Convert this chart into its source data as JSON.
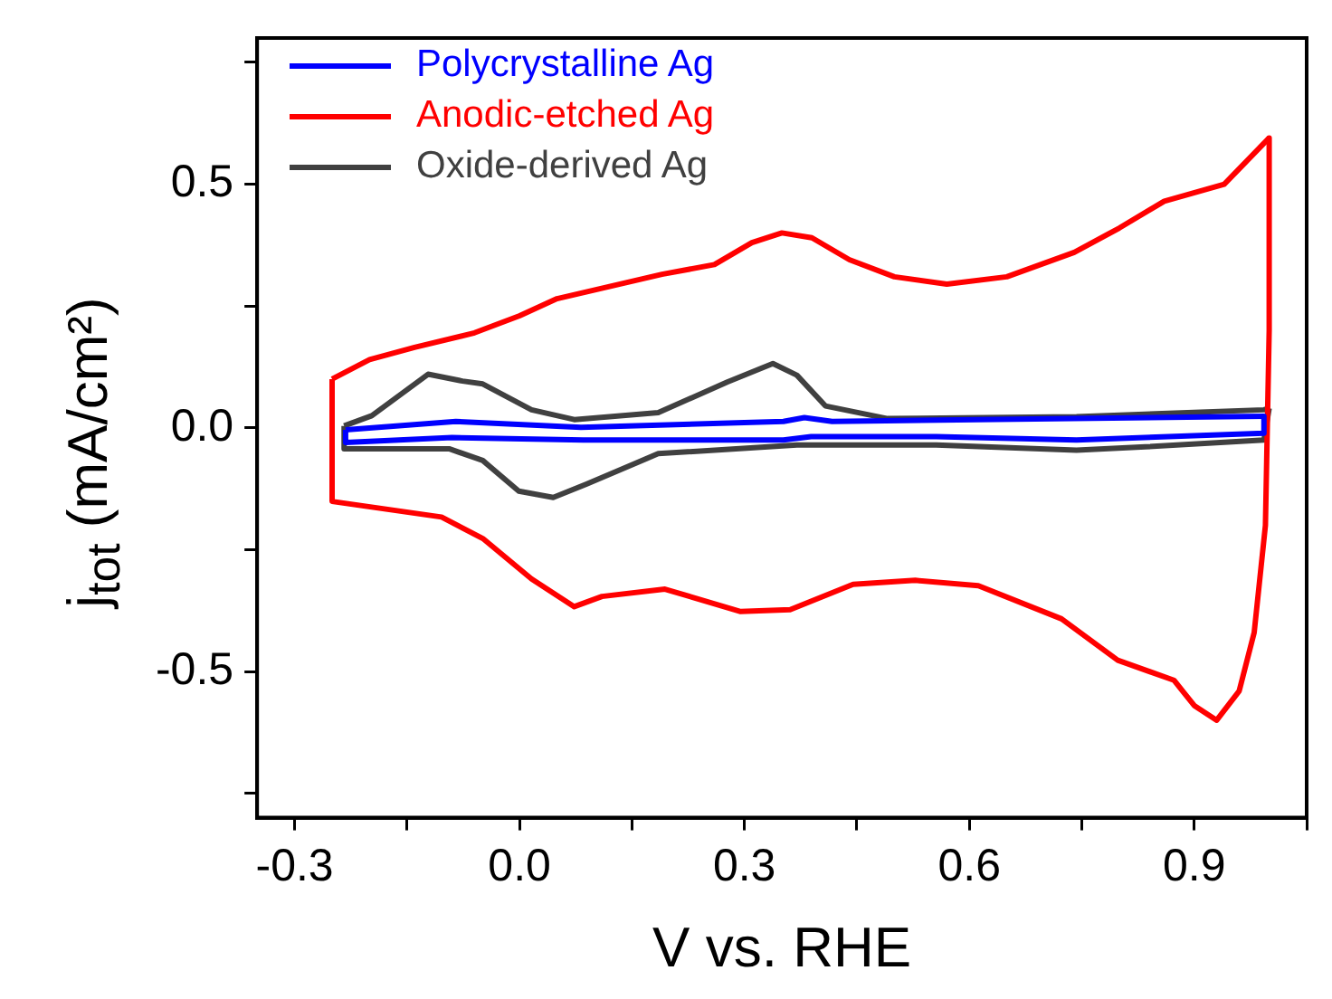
{
  "chart_data": {
    "type": "line",
    "xlabel": "V vs. RHE",
    "ylabel": "j$_{tot}$ (mA/cm²)",
    "xlim": [
      -0.35,
      1.05
    ],
    "xticks": [
      -0.3,
      {
        "value": -0.15,
        "label": null
      },
      {
        "value": 0,
        "label": "0.0"
      },
      {
        "value": 0.15,
        "label": null
      },
      0.3,
      {
        "value": 0.45,
        "label": null
      },
      0.6,
      {
        "value": 0.75,
        "label": null
      },
      0.9,
      {
        "value": 1.05,
        "label": null
      }
    ],
    "ylim": [
      -0.8,
      0.8
    ],
    "yticks": [
      {
        "value": -0.75,
        "label": null
      },
      -0.5,
      {
        "value": -0.25,
        "label": null
      },
      {
        "value": 0,
        "label": "0.0"
      },
      {
        "value": 0.25,
        "label": null
      },
      0.5,
      {
        "value": 0.75,
        "label": null
      }
    ],
    "grid": false,
    "legend": "top left",
    "marker": "none",
    "line_style": "solid",
    "series": [
      {
        "name": "Polycrystalline Ag",
        "color": "#0000ff",
        "x": [
          -0.232,
          -0.085,
          0.082,
          0.352,
          0.38,
          0.417,
          0.993
        ],
        "values": [
          -0.004,
          0.013,
          0.001,
          0.013,
          0.021,
          0.013,
          0.024
        ]
      },
      {
        "color": "#0000ff",
        "x": [
          0.993,
          0.993,
          0.743,
          0.556,
          0.389,
          0.352,
          0.085,
          -0.09,
          -0.232,
          -0.232
        ],
        "values": [
          0.024,
          -0.011,
          -0.025,
          -0.018,
          -0.018,
          -0.025,
          -0.025,
          -0.02,
          -0.03,
          -0.004
        ]
      },
      {
        "name": "Anodic-etched Ag",
        "color": "#ff0000",
        "x": [
          -0.25,
          -0.2,
          -0.14,
          -0.06,
          0,
          0.05,
          0.12,
          0.19,
          0.26,
          0.31,
          0.35,
          0.39,
          0.44,
          0.5,
          0.57,
          0.65,
          0.74,
          0.8,
          0.86,
          0.94,
          1
        ],
        "values": [
          0.1,
          0.14,
          0.165,
          0.195,
          0.23,
          0.265,
          0.29,
          0.315,
          0.335,
          0.38,
          0.4,
          0.39,
          0.345,
          0.31,
          0.295,
          0.31,
          0.36,
          0.41,
          0.465,
          0.5,
          0.595
        ]
      },
      {
        "color": "#ff0000",
        "x": [
          1,
          1,
          0.995,
          0.98,
          0.96,
          0.93,
          0.9,
          0.873,
          0.798,
          0.723,
          0.612,
          0.528,
          0.445,
          0.361,
          0.295,
          0.194,
          0.11,
          0.073,
          0.016,
          -0.049,
          -0.104,
          -0.25,
          -0.25
        ],
        "values": [
          0.595,
          0.2,
          -0.2,
          -0.42,
          -0.54,
          -0.6,
          -0.57,
          -0.518,
          -0.477,
          -0.392,
          -0.324,
          -0.313,
          -0.321,
          -0.373,
          -0.377,
          -0.331,
          -0.346,
          -0.367,
          -0.31,
          -0.227,
          -0.183,
          -0.151,
          0.1
        ]
      },
      {
        "name": "Oxide-derived Ag",
        "color": "#404040",
        "x": [
          -0.234,
          -0.197,
          -0.122,
          -0.076,
          -0.049,
          0.016,
          0.073,
          0.185,
          0.277,
          0.338,
          0.37,
          0.408,
          0.491,
          0.743,
          0.993,
          1
        ],
        "values": [
          0.004,
          0.025,
          0.11,
          0.096,
          0.09,
          0.037,
          0.017,
          0.031,
          0.094,
          0.132,
          0.108,
          0.045,
          0.019,
          0.023,
          0.037,
          0.04
        ]
      },
      {
        "color": "#404040",
        "x": [
          1,
          0.993,
          0.835,
          0.743,
          0.556,
          0.37,
          0.185,
          0.09,
          0.045,
          -0.001,
          -0.049,
          -0.094,
          -0.234,
          -0.234
        ],
        "values": [
          0.04,
          -0.025,
          -0.039,
          -0.046,
          -0.035,
          -0.035,
          -0.053,
          -0.115,
          -0.143,
          -0.13,
          -0.067,
          -0.043,
          -0.043,
          0.004
        ]
      }
    ]
  }
}
